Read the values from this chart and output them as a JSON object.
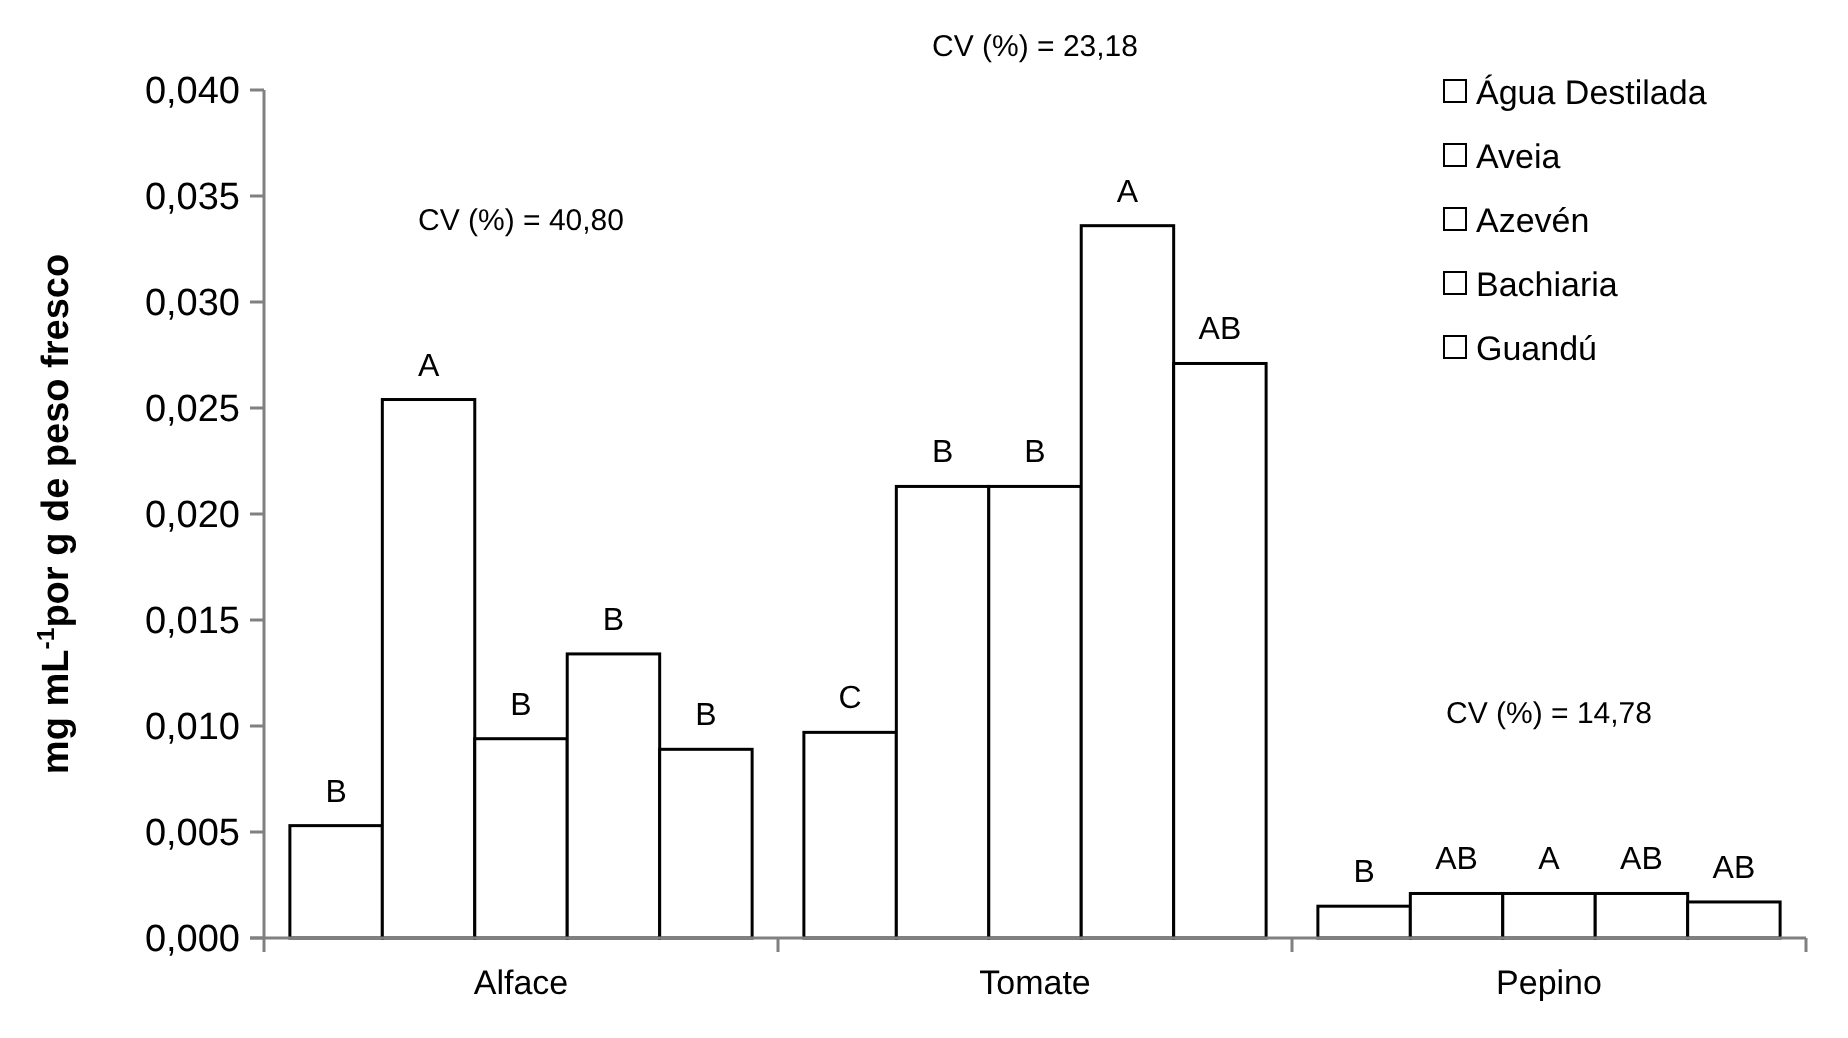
{
  "chart_data": {
    "type": "bar",
    "ylabel": "mg mL$^{-1}$por g de peso fresco",
    "categories": [
      "Alface",
      "Tomate",
      "Pepino"
    ],
    "series": [
      {
        "name": "Água Destilada",
        "color": "#ffffff",
        "values": [
          0.0053,
          0.0097,
          0.0015
        ],
        "value_labels": [
          "B",
          "C",
          "B"
        ]
      },
      {
        "name": "Aveia",
        "color": "#ffffff",
        "values": [
          0.0254,
          0.0213,
          0.0021
        ],
        "value_labels": [
          "A",
          "B",
          "AB"
        ]
      },
      {
        "name": "Azevén",
        "color": "#ffffff",
        "values": [
          0.0094,
          0.0213,
          0.0021
        ],
        "value_labels": [
          "B",
          "B",
          "A"
        ]
      },
      {
        "name": "Bachiaria",
        "color": "#ffffff",
        "values": [
          0.0134,
          0.0336,
          0.0021
        ],
        "value_labels": [
          "B",
          "A",
          "AB"
        ]
      },
      {
        "name": "Guandú",
        "color": "#ffffff",
        "values": [
          0.0089,
          0.0271,
          0.0017
        ],
        "value_labels": [
          "B",
          "AB",
          "AB"
        ]
      }
    ],
    "ylim": [
      0,
      0.04
    ],
    "yticks": [
      {
        "value": 0,
        "label": "0,000"
      },
      {
        "value": 0.005,
        "label": "0,005"
      },
      {
        "value": 0.01,
        "label": "0,010"
      },
      {
        "value": 0.015,
        "label": "0,015"
      },
      {
        "value": 0.02,
        "label": "0,020"
      },
      {
        "value": 0.025,
        "label": "0,025"
      },
      {
        "value": 0.03,
        "label": "0,030"
      },
      {
        "value": 0.035,
        "label": "0,035"
      },
      {
        "value": 0.04,
        "label": "0,040"
      }
    ],
    "grid": false,
    "legend": "top right",
    "annotations": [
      "CV (%) = 40,80",
      "CV (%) = 23,18",
      "CV (%) = 14,78"
    ]
  }
}
